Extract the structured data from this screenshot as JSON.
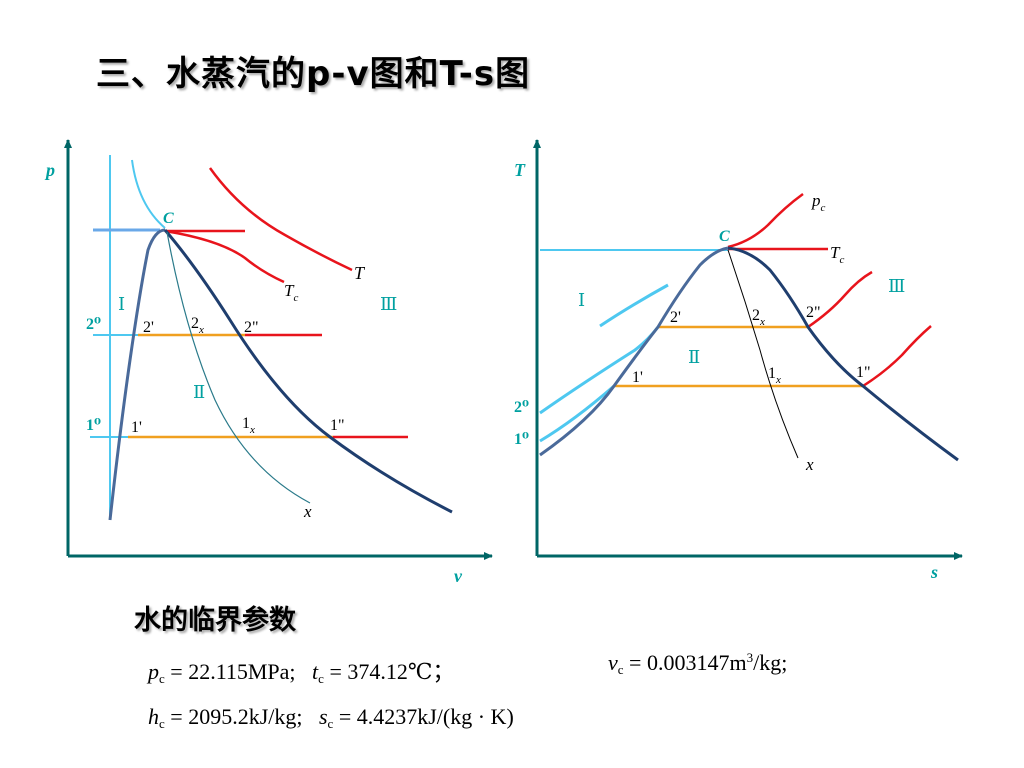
{
  "title": "三、水蒸汽的p-v图和T-s图",
  "pv": {
    "y_axis": "p",
    "x_axis": "v",
    "critical": "C",
    "isotherm_T": "T",
    "isotherm_Tc": "T",
    "isotherm_Tc_sub": "c",
    "x_line": "x",
    "p2": "2⁰",
    "p1": "1⁰",
    "region1": "Ⅰ",
    "region2": "Ⅱ",
    "region3": "Ⅲ",
    "pt_2p": "2'",
    "pt_2x": "2",
    "pt_2x_sub": "x",
    "pt_2pp": "2\"",
    "pt_1p": "1'",
    "pt_1x": "1",
    "pt_1x_sub": "x",
    "pt_1pp": "1\""
  },
  "ts": {
    "y_axis": "T",
    "x_axis": "s",
    "critical": "C",
    "isobar_pc": "p",
    "isobar_pc_sub": "c",
    "isotherm_Tc": "T",
    "isotherm_Tc_sub": "c",
    "x_line": "x",
    "p2": "2⁰",
    "p1": "1⁰",
    "region1": "Ⅰ",
    "region2": "Ⅱ",
    "region3": "Ⅲ",
    "pt_2p": "2'",
    "pt_2x": "2",
    "pt_2x_sub": "x",
    "pt_2pp": "2\"",
    "pt_1p": "1'",
    "pt_1x": "1",
    "pt_1x_sub": "x",
    "pt_1pp": "1\""
  },
  "subtitle": "水的临界参数",
  "params": {
    "pc_sym": "p",
    "pc_sub": "c",
    "pc_val": " = 22.115MPa;",
    "tc_sym": "t",
    "tc_sub": "c",
    "tc_val": " = 374.12℃；",
    "vc_sym": "v",
    "vc_sub": "c",
    "vc_val": " = 0.003147m",
    "vc_sup": "3",
    "vc_unit": "/kg;",
    "hc_sym": "h",
    "hc_sub": "c",
    "hc_val": " = 2095.2kJ/kg;",
    "sc_sym": "s",
    "sc_sub": "c",
    "sc_val": " = 4.4237kJ/(kg · K)"
  },
  "colors": {
    "axis": "#006666",
    "saturation": "#1f3e6e",
    "isotherm": "#e8141c",
    "two_phase": "#f0a020",
    "liquid": "#4ec8f0",
    "label": "#00a0a0"
  }
}
